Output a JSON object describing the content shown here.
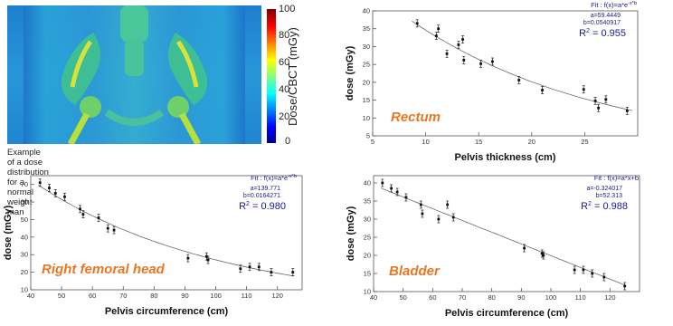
{
  "dose_map": {
    "caption": "Example of a dose distribution for a normal weight man",
    "colorbar_label": "Dose/CBCT (mGy)",
    "colorbar_ticks": [
      "100",
      "80",
      "60",
      "40",
      "20",
      "0"
    ]
  },
  "chart_data": [
    {
      "type": "scatter",
      "title": "Rectum",
      "xlabel": "Pelvis thickness (cm)",
      "ylabel": "dose (mGy)",
      "xlim": [
        5,
        30
      ],
      "ylim": [
        5,
        40
      ],
      "xticks": [
        5,
        10,
        15,
        20,
        25
      ],
      "yticks": [
        5,
        10,
        15,
        20,
        25,
        30,
        35,
        40
      ],
      "fit_label": "Fit : f(x)=a*e",
      "fit_exp": "-x*b",
      "param_a": "a=59.4449",
      "param_b": "b=0.0540917",
      "r2_prefix": "R",
      "r2_value": " = 0.955",
      "points": [
        {
          "x": 9.2,
          "y": 36.5
        },
        {
          "x": 11.0,
          "y": 33.0
        },
        {
          "x": 11.2,
          "y": 35.0
        },
        {
          "x": 12.0,
          "y": 28.0
        },
        {
          "x": 13.1,
          "y": 30.5
        },
        {
          "x": 13.5,
          "y": 32.0
        },
        {
          "x": 13.6,
          "y": 26.2
        },
        {
          "x": 15.2,
          "y": 25.2
        },
        {
          "x": 16.3,
          "y": 25.8
        },
        {
          "x": 18.8,
          "y": 20.6
        },
        {
          "x": 21.0,
          "y": 17.8
        },
        {
          "x": 24.9,
          "y": 18.0
        },
        {
          "x": 26.0,
          "y": 14.8
        },
        {
          "x": 26.3,
          "y": 12.8
        },
        {
          "x": 27.0,
          "y": 15.2
        },
        {
          "x": 29.0,
          "y": 12.0
        }
      ]
    },
    {
      "type": "scatter",
      "title": "Right femoral head",
      "xlabel": "Pelvis circumference (cm)",
      "ylabel": "dose (mGy)",
      "xlim": [
        40,
        128
      ],
      "ylim": [
        10,
        75
      ],
      "xticks": [
        40,
        50,
        60,
        70,
        80,
        90,
        100,
        110,
        120
      ],
      "yticks": [
        10,
        20,
        30,
        40,
        50,
        60,
        70
      ],
      "fit_label": "Fit : f(x)=a*e",
      "fit_exp": "-x*b",
      "param_a": "a=139.771",
      "param_b": "b=0.0164271",
      "r2_prefix": "R",
      "r2_value": " = 0.980",
      "points": [
        {
          "x": 43,
          "y": 71
        },
        {
          "x": 46,
          "y": 68
        },
        {
          "x": 48,
          "y": 65
        },
        {
          "x": 51,
          "y": 63
        },
        {
          "x": 56,
          "y": 56
        },
        {
          "x": 57,
          "y": 53
        },
        {
          "x": 62,
          "y": 51
        },
        {
          "x": 65,
          "y": 45
        },
        {
          "x": 67,
          "y": 44
        },
        {
          "x": 91,
          "y": 28
        },
        {
          "x": 97,
          "y": 29
        },
        {
          "x": 97.5,
          "y": 27
        },
        {
          "x": 108,
          "y": 22
        },
        {
          "x": 111,
          "y": 23
        },
        {
          "x": 114,
          "y": 23
        },
        {
          "x": 118,
          "y": 20
        },
        {
          "x": 125,
          "y": 20
        }
      ]
    },
    {
      "type": "scatter",
      "title": "Bladder",
      "xlabel": "Pelvis circumference (cm)",
      "ylabel": "dose (mGy)",
      "xlim": [
        40,
        130
      ],
      "ylim": [
        10,
        42
      ],
      "xticks": [
        40,
        50,
        60,
        70,
        80,
        90,
        100,
        110,
        120
      ],
      "yticks": [
        10,
        15,
        20,
        25,
        30,
        35,
        40
      ],
      "fit_label": "Fit : f(x)=a*x+b",
      "fit_exp": "",
      "param_a": "a=-0.324017",
      "param_b": "b=52.313",
      "r2_prefix": "R",
      "r2_value": " = 0.988",
      "points": [
        {
          "x": 43,
          "y": 40
        },
        {
          "x": 46,
          "y": 38.5
        },
        {
          "x": 48,
          "y": 37.5
        },
        {
          "x": 51,
          "y": 36
        },
        {
          "x": 56,
          "y": 34
        },
        {
          "x": 56.5,
          "y": 31.5
        },
        {
          "x": 62,
          "y": 30
        },
        {
          "x": 65,
          "y": 34
        },
        {
          "x": 67,
          "y": 30.5
        },
        {
          "x": 91,
          "y": 22
        },
        {
          "x": 97,
          "y": 20.5
        },
        {
          "x": 97.5,
          "y": 20
        },
        {
          "x": 108,
          "y": 16
        },
        {
          "x": 111,
          "y": 16
        },
        {
          "x": 114,
          "y": 15
        },
        {
          "x": 118,
          "y": 14
        },
        {
          "x": 125,
          "y": 11.5
        }
      ]
    }
  ]
}
